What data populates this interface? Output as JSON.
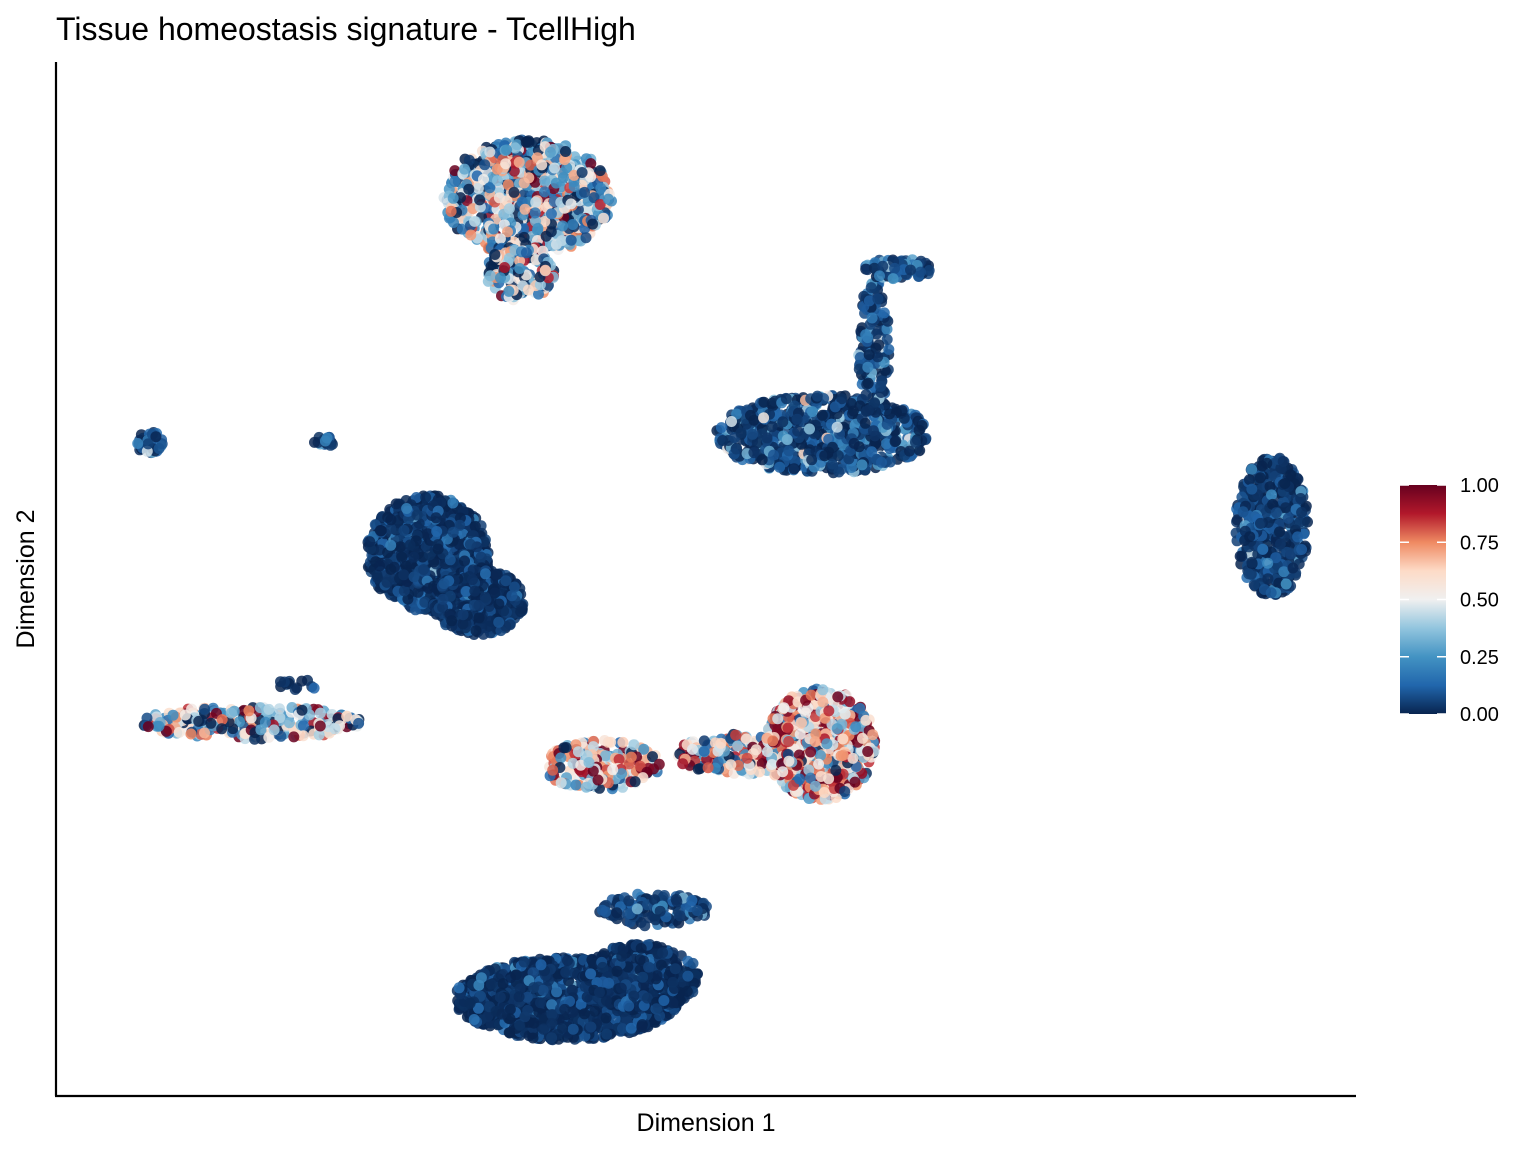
{
  "chart_data": {
    "type": "scatter",
    "title": "Tissue homeostasis signature - TcellHigh",
    "xlabel": "Dimension 1",
    "ylabel": "Dimension 2",
    "x_ticks_shown": false,
    "y_ticks_shown": false,
    "grid": false,
    "legend_position": "right",
    "color_scale": {
      "name": "RdBu (reversed)",
      "min": 0.0,
      "max": 1.0,
      "ticks": [
        "1.00",
        "0.75",
        "0.50",
        "0.25",
        "0.00"
      ],
      "stops": [
        {
          "value": 0.0,
          "color": "#08244f"
        },
        {
          "value": 0.125,
          "color": "#2166ac"
        },
        {
          "value": 0.25,
          "color": "#4393c3"
        },
        {
          "value": 0.375,
          "color": "#92c5de"
        },
        {
          "value": 0.5,
          "color": "#f0f0f0"
        },
        {
          "value": 0.625,
          "color": "#fddbc7"
        },
        {
          "value": 0.75,
          "color": "#ef8a62"
        },
        {
          "value": 0.875,
          "color": "#b2182b"
        },
        {
          "value": 1.0,
          "color": "#67001f"
        }
      ]
    },
    "xlim": [
      0,
      100
    ],
    "ylim": [
      0,
      100
    ],
    "clusters": [
      {
        "cx": 36.3,
        "cy": 86.9,
        "rx": 6.5,
        "ry": 5.6,
        "n": 900,
        "mean": 0.35,
        "sd": 0.33
      },
      {
        "cx": 35.7,
        "cy": 79.7,
        "rx": 2.6,
        "ry": 2.8,
        "n": 160,
        "mean": 0.4,
        "sd": 0.33
      },
      {
        "cx": 59.0,
        "cy": 64.0,
        "rx": 8.2,
        "ry": 3.8,
        "n": 750,
        "mean": 0.12,
        "sd": 0.2
      },
      {
        "cx": 62.9,
        "cy": 72.4,
        "rx": 1.2,
        "ry": 6.5,
        "n": 140,
        "mean": 0.1,
        "sd": 0.14
      },
      {
        "cx": 64.8,
        "cy": 80.0,
        "rx": 2.6,
        "ry": 1.0,
        "n": 80,
        "mean": 0.12,
        "sd": 0.18
      },
      {
        "cx": 28.6,
        "cy": 52.5,
        "rx": 4.7,
        "ry": 5.6,
        "n": 950,
        "mean": 0.04,
        "sd": 0.1
      },
      {
        "cx": 32.5,
        "cy": 47.8,
        "rx": 3.5,
        "ry": 3.2,
        "n": 500,
        "mean": 0.03,
        "sd": 0.08
      },
      {
        "cx": 93.5,
        "cy": 55.1,
        "rx": 2.8,
        "ry": 6.8,
        "n": 450,
        "mean": 0.08,
        "sd": 0.13
      },
      {
        "cx": 7.2,
        "cy": 63.2,
        "rx": 1.0,
        "ry": 1.1,
        "n": 40,
        "mean": 0.15,
        "sd": 0.17
      },
      {
        "cx": 20.6,
        "cy": 63.3,
        "rx": 0.8,
        "ry": 0.5,
        "n": 15,
        "mean": 0.1,
        "sd": 0.1
      },
      {
        "cx": 15.0,
        "cy": 36.1,
        "rx": 8.5,
        "ry": 1.6,
        "n": 280,
        "mean": 0.45,
        "sd": 0.33
      },
      {
        "cx": 18.5,
        "cy": 39.8,
        "rx": 1.6,
        "ry": 0.7,
        "n": 12,
        "mean": 0.05,
        "sd": 0.05
      },
      {
        "cx": 42.0,
        "cy": 32.0,
        "rx": 4.5,
        "ry": 2.4,
        "n": 200,
        "mean": 0.55,
        "sd": 0.32
      },
      {
        "cx": 53.0,
        "cy": 33.0,
        "rx": 5.5,
        "ry": 2.0,
        "n": 250,
        "mean": 0.5,
        "sd": 0.33
      },
      {
        "cx": 58.8,
        "cy": 34.0,
        "rx": 4.2,
        "ry": 5.4,
        "n": 700,
        "mean": 0.6,
        "sd": 0.3
      },
      {
        "cx": 46.0,
        "cy": 18.0,
        "rx": 4.2,
        "ry": 1.6,
        "n": 120,
        "mean": 0.12,
        "sd": 0.15
      },
      {
        "cx": 39.3,
        "cy": 9.4,
        "rx": 8.6,
        "ry": 4.0,
        "n": 1300,
        "mean": 0.03,
        "sd": 0.09
      },
      {
        "cx": 45.0,
        "cy": 11.5,
        "rx": 4.5,
        "ry": 3.2,
        "n": 500,
        "mean": 0.03,
        "sd": 0.08
      }
    ]
  }
}
